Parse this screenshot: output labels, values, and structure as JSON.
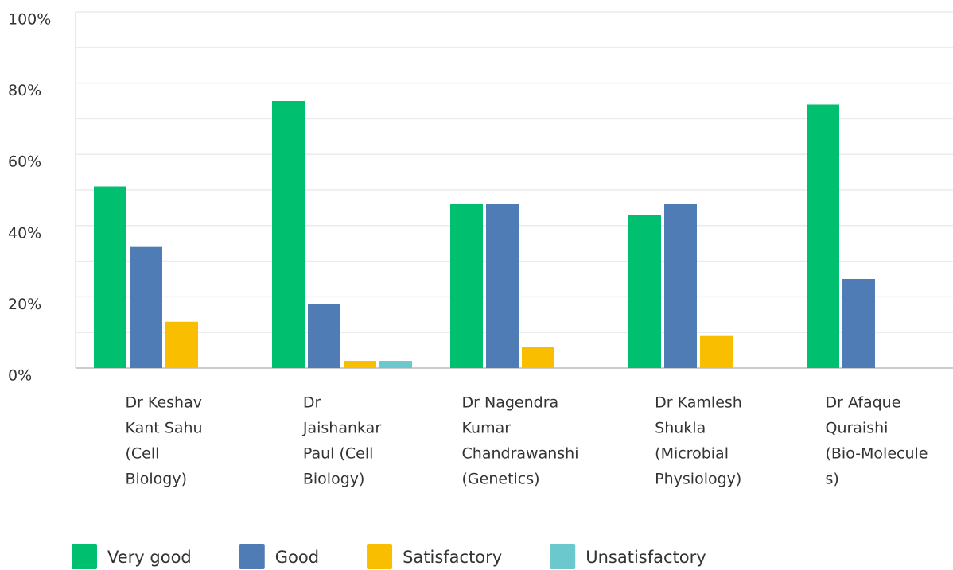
{
  "chart_data": {
    "type": "bar",
    "categories": [
      [
        "Dr Keshav",
        "Kant Sahu",
        "(Cell",
        "Biology)"
      ],
      [
        "Dr",
        "Jaishankar",
        "Paul (Cell",
        "Biology)"
      ],
      [
        "Dr Nagendra",
        "Kumar",
        "Chandrawanshi",
        "(Genetics)"
      ],
      [
        "Dr Kamlesh",
        "Shukla",
        "(Microbial",
        "Physiology)"
      ],
      [
        "Dr Afaque",
        "Quraishi",
        "(Bio-Molecule",
        "s)"
      ]
    ],
    "series": [
      {
        "name": "Very good",
        "color": "#00bf6f",
        "values": [
          51,
          75,
          46,
          43,
          74
        ]
      },
      {
        "name": "Good",
        "color": "#507cb6",
        "values": [
          34,
          18,
          46,
          46,
          25
        ]
      },
      {
        "name": "Satisfactory",
        "color": "#f9be00",
        "values": [
          13,
          2,
          6,
          9,
          0
        ]
      },
      {
        "name": "Unsatisfactory",
        "color": "#6bc8cd",
        "values": [
          0,
          2,
          0,
          0,
          0
        ]
      }
    ],
    "ylim": [
      0,
      100
    ],
    "yticks": [
      {
        "value": 0,
        "label": "0%"
      },
      {
        "value": 20,
        "label": "20%"
      },
      {
        "value": 40,
        "label": "40%"
      },
      {
        "value": 60,
        "label": "60%"
      },
      {
        "value": 80,
        "label": "80%"
      },
      {
        "value": 100,
        "label": "100%"
      }
    ],
    "minor_yticks": [
      10,
      30,
      50,
      70,
      90
    ],
    "grid": true,
    "legend": "bottom"
  }
}
